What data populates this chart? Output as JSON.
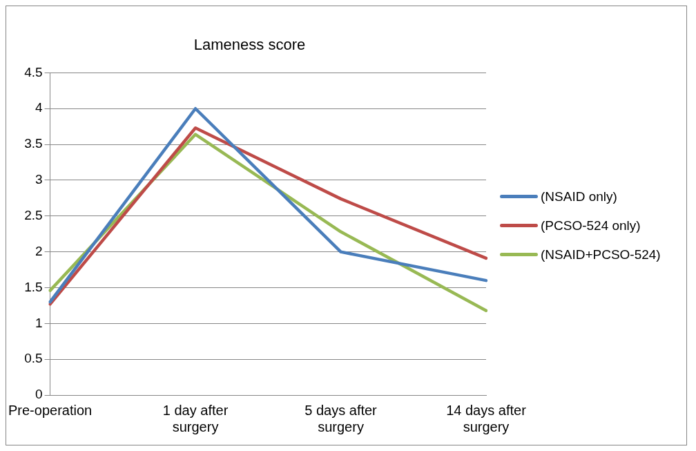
{
  "chart_data": {
    "type": "line",
    "title": "Lameness score",
    "categories": [
      "Pre-operation",
      "1 day after surgery",
      "5 days after surgery",
      "14 days after surgery"
    ],
    "series": [
      {
        "name": "(NSAID only)",
        "color": "#4a7ebb",
        "values": [
          1.3,
          4.0,
          2.0,
          1.6
        ]
      },
      {
        "name": "(PCSO-524 only)",
        "color": "#be4b48",
        "values": [
          1.27,
          3.73,
          2.74,
          1.91
        ]
      },
      {
        "name": "(NSAID+PCSO-524)",
        "color": "#98b954",
        "values": [
          1.46,
          3.64,
          2.28,
          1.18
        ]
      }
    ],
    "ylim": [
      0,
      4.5
    ],
    "yticks": [
      0,
      0.5,
      1,
      1.5,
      2,
      2.5,
      3,
      3.5,
      4,
      4.5
    ],
    "grid": "y",
    "legend": "right",
    "marker": "none",
    "line_style": "solid"
  }
}
